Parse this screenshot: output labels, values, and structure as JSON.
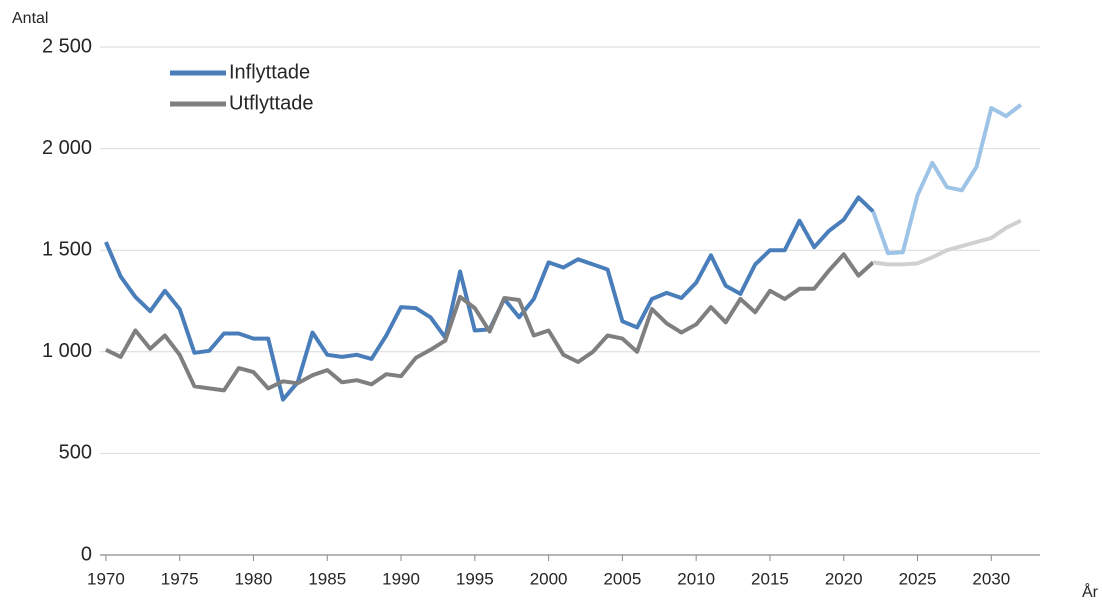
{
  "chart_data": {
    "type": "line",
    "y_label": "Antal",
    "x_label": "År",
    "x": [
      1970,
      1971,
      1972,
      1973,
      1974,
      1975,
      1976,
      1977,
      1978,
      1979,
      1980,
      1981,
      1982,
      1983,
      1984,
      1985,
      1986,
      1987,
      1988,
      1989,
      1990,
      1991,
      1992,
      1993,
      1994,
      1995,
      1996,
      1997,
      1998,
      1999,
      2000,
      2001,
      2002,
      2003,
      2004,
      2005,
      2006,
      2007,
      2008,
      2009,
      2010,
      2011,
      2012,
      2013,
      2014,
      2015,
      2016,
      2017,
      2018,
      2019,
      2020,
      2021,
      2022,
      2023,
      2024,
      2025,
      2026,
      2027,
      2028,
      2029,
      2030,
      2031,
      2032
    ],
    "projection_from": 2022,
    "series": [
      {
        "name": "Inflyttade",
        "color": "#4a7ebb",
        "projection_color": "#9dc3e6",
        "values": [
          1540,
          1370,
          1270,
          1200,
          1300,
          1210,
          995,
          1005,
          1090,
          1090,
          1065,
          1065,
          765,
          850,
          1095,
          985,
          975,
          985,
          965,
          1080,
          1220,
          1215,
          1170,
          1070,
          1395,
          1105,
          1110,
          1260,
          1170,
          1260,
          1440,
          1415,
          1455,
          1430,
          1405,
          1150,
          1120,
          1260,
          1290,
          1265,
          1340,
          1475,
          1325,
          1285,
          1430,
          1500,
          1500,
          1645,
          1515,
          1595,
          1650,
          1760,
          1690,
          1485,
          1490,
          1770,
          1930,
          1810,
          1795,
          1910,
          2200,
          2160,
          2215
        ]
      },
      {
        "name": "Utflyttade",
        "color": "#7f7f7f",
        "projection_color": "#d0d0d0",
        "values": [
          1010,
          975,
          1105,
          1015,
          1080,
          985,
          830,
          820,
          810,
          920,
          900,
          820,
          855,
          845,
          885,
          910,
          850,
          860,
          840,
          890,
          880,
          970,
          1010,
          1055,
          1270,
          1215,
          1100,
          1265,
          1255,
          1080,
          1105,
          985,
          950,
          1000,
          1080,
          1065,
          1000,
          1210,
          1140,
          1095,
          1135,
          1220,
          1145,
          1260,
          1195,
          1300,
          1260,
          1310,
          1310,
          1400,
          1480,
          1375,
          1440,
          1430,
          1430,
          1435,
          1465,
          1500,
          1520,
          1540,
          1560,
          1610,
          1645
        ]
      }
    ],
    "xlim": [
      1969.6,
      2033.3
    ],
    "xticks": [
      1970,
      1975,
      1980,
      1985,
      1990,
      1995,
      2000,
      2005,
      2010,
      2015,
      2020,
      2025,
      2030
    ],
    "ylim": [
      0,
      2500
    ],
    "yticks": [
      0,
      500,
      {
        "value": 1000,
        "label": "1 000"
      },
      {
        "value": 1500,
        "label": "1 500"
      },
      {
        "value": 2000,
        "label": "2 000"
      },
      {
        "value": 2500,
        "label": "2 500"
      }
    ],
    "grid": true,
    "legend": "upper left"
  }
}
